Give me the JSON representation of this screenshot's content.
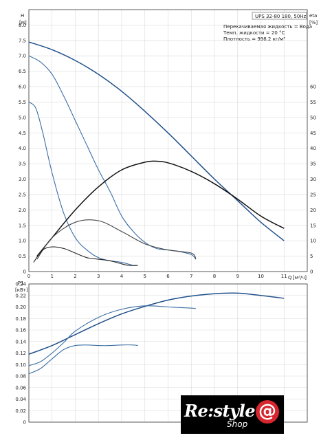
{
  "chart_data": [
    {
      "type": "line",
      "info": [
        "UPS 32-80 180, 50Hz"
      ],
      "notes": [
        "Перекачиваемая жидкость = Вода",
        "Темп. жидкости = 20 °C",
        "Плотность = 998.2 кг/м³"
      ],
      "y_axis_label": "H",
      "y_axis_unit": "[м]",
      "y2_axis_label": "eta",
      "y2_axis_unit": "[%]",
      "x_axis_label": "Q",
      "x_axis_unit": "[м³/ч]",
      "xlim": [
        0,
        12
      ],
      "ylim": [
        0,
        8.5
      ],
      "y2lim": [
        0,
        85
      ],
      "x_ticks": [
        "0",
        "1",
        "2",
        "3",
        "4",
        "5",
        "6",
        "7",
        "8",
        "9",
        "10",
        "11"
      ],
      "y_ticks": [
        "0",
        "0.5",
        "1.0",
        "1.5",
        "2.0",
        "2.5",
        "3.0",
        "3.5",
        "4.0",
        "4.5",
        "5.0",
        "5.5",
        "6.0",
        "6.5",
        "7.0",
        "7.5",
        "8.0"
      ],
      "y2_ticks": [
        "0",
        "5",
        "10",
        "15",
        "20",
        "25",
        "30",
        "35",
        "40",
        "45",
        "50",
        "55",
        "60"
      ],
      "grid": true,
      "series": [
        {
          "color": "#1e4f8a",
          "x": [
            0,
            1,
            2,
            3,
            4,
            5,
            6,
            7,
            8,
            9,
            10,
            11
          ],
          "y": [
            7.45,
            7.2,
            6.85,
            6.4,
            5.85,
            5.2,
            4.5,
            3.75,
            3.0,
            2.3,
            1.6,
            1.0
          ]
        },
        {
          "color": "#3a6ea5",
          "x": [
            0,
            0.5,
            1,
            1.5,
            2,
            2.5,
            3,
            3.5,
            4,
            4.5,
            5,
            5.5,
            6,
            6.5,
            7,
            7.2
          ],
          "y": [
            7.0,
            6.8,
            6.4,
            5.7,
            4.9,
            4.1,
            3.3,
            2.6,
            1.8,
            1.3,
            0.95,
            0.75,
            0.7,
            0.65,
            0.55,
            0.4
          ]
        },
        {
          "color": "#3a6ea5",
          "x": [
            0,
            0.3,
            0.6,
            1,
            1.5,
            2,
            2.5,
            3,
            3.5,
            4,
            4.5,
            4.7
          ],
          "y": [
            5.5,
            5.3,
            4.5,
            3.2,
            1.9,
            1.1,
            0.7,
            0.45,
            0.35,
            0.3,
            0.2,
            0.2
          ]
        },
        {
          "color": "#111111",
          "axis": "eta",
          "x": [
            0.35,
            1,
            2,
            3,
            4,
            5,
            5.5,
            6,
            7,
            8,
            9,
            10,
            11
          ],
          "y": [
            5,
            11,
            20,
            27.5,
            33,
            35.5,
            35.8,
            35.3,
            32.5,
            28.5,
            23.5,
            18,
            14
          ]
        },
        {
          "color": "#444444",
          "axis": "eta",
          "x": [
            0.35,
            1,
            2,
            3,
            4,
            5,
            6,
            7,
            7.2
          ],
          "y": [
            4,
            11,
            16,
            16.5,
            13,
            9,
            7,
            6,
            4
          ]
        },
        {
          "color": "#222222",
          "axis": "eta",
          "x": [
            0.2,
            0.6,
            1,
            1.5,
            2,
            2.5,
            3,
            3.5,
            4,
            4.3,
            4.7
          ],
          "y": [
            3,
            7,
            8,
            7.5,
            6,
            4.5,
            4,
            3.5,
            2.5,
            2,
            2
          ]
        }
      ]
    },
    {
      "type": "line",
      "y_axis_label": "P1",
      "y_axis_unit": "[кВт]",
      "xlim": [
        0,
        12
      ],
      "ylim": [
        0,
        0.24
      ],
      "x_ticks": [
        "0",
        "1",
        "2",
        "3",
        "4",
        "5",
        "6",
        "7",
        "8",
        "9",
        "10",
        "11"
      ],
      "y_ticks": [
        "0",
        "0.02",
        "0.04",
        "0.06",
        "0.08",
        "0.10",
        "0.12",
        "0.14",
        "0.16",
        "0.18",
        "0.20",
        "0.22",
        "0.24"
      ],
      "grid": true,
      "series": [
        {
          "color": "#1e4f8a",
          "x": [
            0,
            1,
            2,
            3,
            4,
            5,
            6,
            7,
            8,
            9,
            10,
            11
          ],
          "y": [
            0.118,
            0.133,
            0.152,
            0.171,
            0.188,
            0.201,
            0.212,
            0.219,
            0.223,
            0.224,
            0.22,
            0.215
          ]
        },
        {
          "color": "#3a6ea5",
          "x": [
            0,
            0.5,
            1,
            1.5,
            2,
            3,
            4,
            5,
            6,
            7,
            7.2
          ],
          "y": [
            0.098,
            0.105,
            0.12,
            0.138,
            0.158,
            0.182,
            0.196,
            0.202,
            0.2,
            0.198,
            0.197
          ]
        },
        {
          "color": "#3a6ea5",
          "x": [
            0,
            0.5,
            1,
            1.5,
            2,
            2.5,
            3,
            3.5,
            4,
            4.5,
            4.7
          ],
          "y": [
            0.084,
            0.093,
            0.11,
            0.126,
            0.133,
            0.134,
            0.133,
            0.133,
            0.134,
            0.134,
            0.133
          ]
        }
      ]
    }
  ],
  "logo": {
    "main": "Re:style",
    "sub": "Shop",
    "mark": "@"
  }
}
